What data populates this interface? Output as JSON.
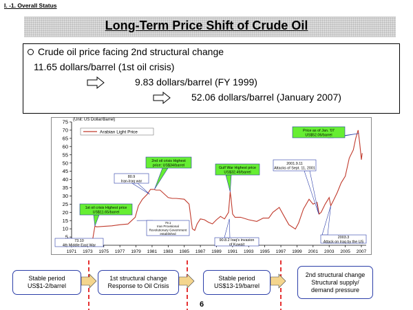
{
  "section_label": "I. -1. Overall Status",
  "title": "Long-Term Price Shift of Crude Oil",
  "info_box": {
    "heading": "Crude oil price facing 2nd structural change",
    "line1": "11.65 dollars/barrel (1st oil crisis)",
    "line2": "9.83 dollars/barrel (FY 1999)",
    "line3": "52.06 dollars/barrel (January 2007)"
  },
  "chart_data": {
    "type": "line",
    "title": "",
    "ylabel": "(Unit: US Dollar/Barrel)",
    "xlabel": "",
    "ylim": [
      0,
      75
    ],
    "xlim": [
      1971,
      2007.6
    ],
    "yticks": [
      0,
      5,
      10,
      15,
      20,
      25,
      30,
      35,
      40,
      45,
      50,
      55,
      60,
      65,
      70,
      75
    ],
    "xticks": [
      "1971",
      "1973",
      "1975",
      "1977",
      "1979",
      "1981",
      "1983",
      "1985",
      "1987",
      "1989",
      "1991",
      "1993",
      "1995",
      "1997",
      "1999",
      "2001",
      "2003",
      "2005",
      "2007"
    ],
    "legend": "top-left",
    "grid": false,
    "series": [
      {
        "name": "Arabian Light Price",
        "color": "#c0392b",
        "x": [
          1971.0,
          1973.6,
          1973.9,
          1974.1,
          1975.0,
          1976.0,
          1977.0,
          1978.0,
          1978.9,
          1979.3,
          1979.8,
          1980.4,
          1980.8,
          1981.2,
          1981.5,
          1982.0,
          1983.0,
          1983.5,
          1984.0,
          1985.0,
          1985.6,
          1986.0,
          1986.3,
          1986.6,
          1987.0,
          1987.5,
          1988.0,
          1988.5,
          1989.0,
          1989.5,
          1990.0,
          1990.5,
          1990.7,
          1990.8,
          1991.0,
          1991.3,
          1992.0,
          1993.0,
          1994.0,
          1994.8,
          1995.5,
          1996.0,
          1996.8,
          1997.3,
          1998.0,
          1998.8,
          1999.2,
          1999.8,
          2000.5,
          2001.0,
          2001.5,
          2001.75,
          2002.0,
          2002.5,
          2003.0,
          2003.2,
          2003.5,
          2004.0,
          2004.5,
          2005.0,
          2005.5,
          2006.0,
          2006.3,
          2006.6,
          2006.8,
          2007.0,
          2007.1
        ],
        "values": [
          2.0,
          3.0,
          11.65,
          11.2,
          11.5,
          11.8,
          12.5,
          12.9,
          17.0,
          24.0,
          28.0,
          31.0,
          34.0,
          34.0,
          33.5,
          33.5,
          29.0,
          28.5,
          28.5,
          28.0,
          25.0,
          10.0,
          9.0,
          13.0,
          16.0,
          15.5,
          14.0,
          13.0,
          15.5,
          17.5,
          16.0,
          20.0,
          32.5,
          29.0,
          19.0,
          17.0,
          17.0,
          15.5,
          14.5,
          16.5,
          16.5,
          20.0,
          23.0,
          18.5,
          12.5,
          9.83,
          13.5,
          22.0,
          28.0,
          25.0,
          26.0,
          19.0,
          20.0,
          25.0,
          29.0,
          24.0,
          27.0,
          32.0,
          38.0,
          42.0,
          53.0,
          58.0,
          65.0,
          70.0,
          62.0,
          52.06,
          56.0
        ]
      }
    ],
    "annotations": [
      {
        "text": "1st oil crisis Highest price US$11.65/barrel",
        "x": 1973.9,
        "y": 11.65
      },
      {
        "text": "2nd oil crisis Highest price US$34/barrel",
        "x": 1981.3,
        "y": 34.0
      },
      {
        "text": "80.9 Iran-Iraq war",
        "x": 1980.7,
        "y": 31.0
      },
      {
        "text": "Gulf War Highest price US$32.49/barrel",
        "x": 1990.7,
        "y": 32.49
      },
      {
        "text": "2001.9.11 Attacks of Sept. 11, 2001",
        "x": 2001.7,
        "y": 19.0
      },
      {
        "text": "Price as of Jan. '07 US$52.06/barrel",
        "x": 2006.7,
        "y": 68.0
      },
      {
        "text": "79.1 Iran Provisional Revolutionary Government established",
        "x": 1979.1,
        "y": 15.0
      },
      {
        "text": "73.10 4th Middle East War",
        "x": 1973.8,
        "y": 3.0
      },
      {
        "text": "90.8.2 Iraq's invasion of Kuwait",
        "x": 1990.6,
        "y": 16.0
      },
      {
        "text": "2003.3 Attack on Iraq by the US",
        "x": 2003.2,
        "y": 24.0
      }
    ]
  },
  "phases": [
    {
      "line1": "Stable period",
      "line2": "US$1-2/barrel",
      "line3": ""
    },
    {
      "line1": "1st structural change",
      "line2": "Response to Oil Crisis",
      "line3": ""
    },
    {
      "line1": "Stable period",
      "line2": "US$13-19/barrel",
      "line3": ""
    },
    {
      "line1": "2nd structural change",
      "line2": "Structural supply/",
      "line3": "demand pressure"
    }
  ],
  "page_number": "6",
  "colors": {
    "series": "#c0392b",
    "callout_fill": "#66ee33",
    "dash_divider": "#e53030",
    "phase_border": "#2a3da8"
  }
}
